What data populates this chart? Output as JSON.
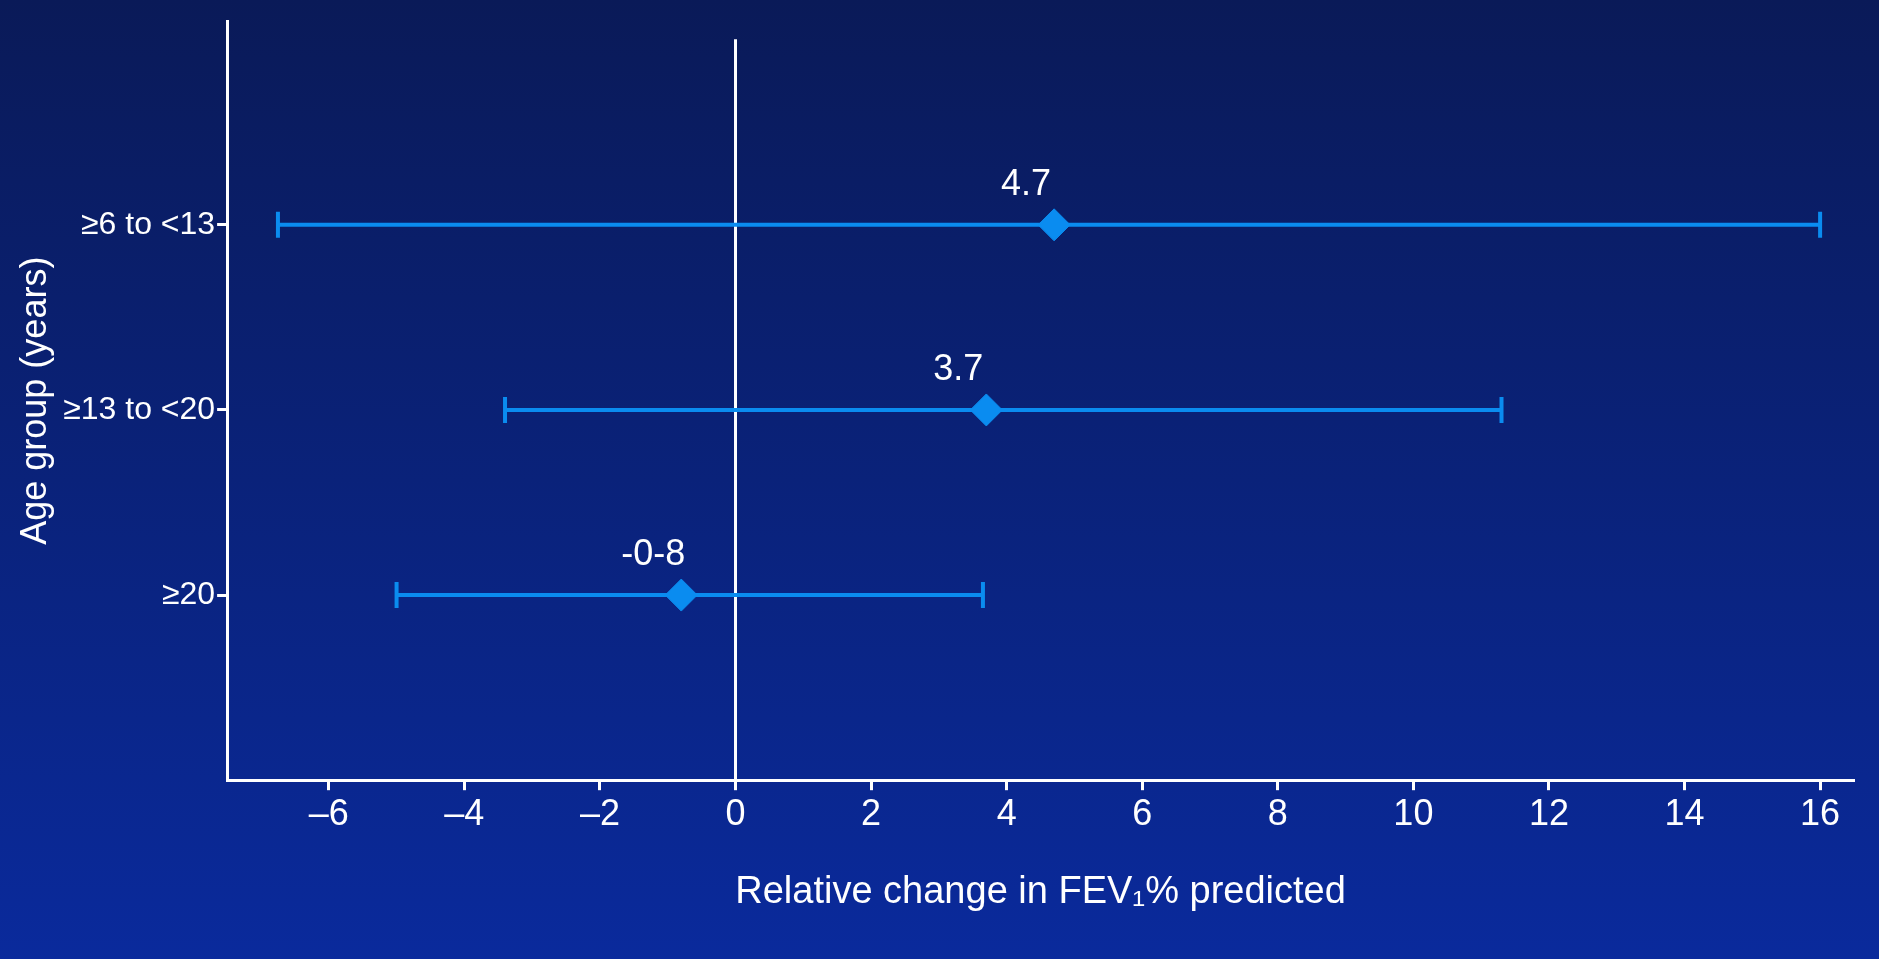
{
  "chart_data": {
    "type": "scatter",
    "orientation": "horizontal",
    "xlabel": "Relative change in FEV₁% predicted",
    "ylabel": "Age group (years)",
    "categories": [
      "≥6 to <13",
      "≥13 to <20",
      "≥20"
    ],
    "values": [
      4.7,
      3.7,
      -0.8
    ],
    "value_labels": [
      "4.7",
      "3.7",
      "-0-8"
    ],
    "errors": [
      [
        -6.75,
        16.0
      ],
      [
        -3.4,
        11.3
      ],
      [
        -5.0,
        3.65
      ]
    ],
    "color": "#0a8cf0",
    "marker": "diamond",
    "xlim": [
      -7.5,
      16.5
    ],
    "xticks": [
      {
        "value": -6,
        "label": "–6"
      },
      {
        "value": -4,
        "label": "–4"
      },
      {
        "value": -2,
        "label": "–2"
      },
      0,
      2,
      4,
      6,
      8,
      10,
      12,
      14,
      16
    ],
    "ref_lines": [
      {
        "axis": "x",
        "value": 0,
        "color": "#ffffff"
      }
    ],
    "grid": false,
    "legend": false
  }
}
